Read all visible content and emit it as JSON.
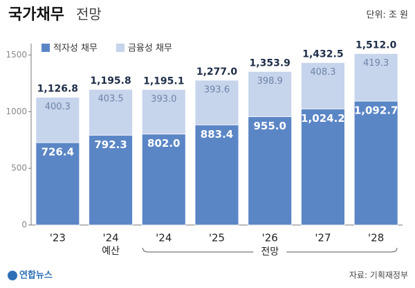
{
  "chart_data": {
    "type": "stacked-bar",
    "title": "국가채무",
    "subtitle": "전망",
    "unit": "단위: 조 원",
    "categories": [
      "'23",
      "'24",
      "'24",
      "'25",
      "'26",
      "'27",
      "'28"
    ],
    "annotations": {
      "budget": "예산",
      "forecast": "전망"
    },
    "series": [
      {
        "name": "적자성 채무",
        "color": "#5b86c6",
        "label_color": "#ffffff",
        "values": [
          726.4,
          792.3,
          802.0,
          883.4,
          955.0,
          1024.2,
          1092.7
        ],
        "value_labels": [
          "726.4",
          "792.3",
          "802.0",
          "883.4",
          "955.0",
          "1,024.2",
          "1,092.7"
        ]
      },
      {
        "name": "금융성 채무",
        "color": "#c6d4ec",
        "label_color": "#6f84a8",
        "values": [
          400.3,
          403.5,
          393.0,
          393.6,
          398.9,
          408.3,
          419.3
        ],
        "value_labels": [
          "400.3",
          "403.5",
          "393.0",
          "393.6",
          "398.9",
          "408.3",
          "419.3"
        ]
      }
    ],
    "totals": {
      "values": [
        1126.8,
        1195.8,
        1195.1,
        1277.0,
        1353.9,
        1432.5,
        1512.0
      ],
      "value_labels": [
        "1,126.8",
        "1,195.8",
        "1,195.1",
        "1,277.0",
        "1,353.9",
        "1,432.5",
        "1,512.0"
      ]
    },
    "ylim": [
      0,
      1600
    ],
    "yticks": [
      0,
      500,
      1000,
      1500
    ],
    "grid": false,
    "source": "자료: 기획재정부",
    "logo": "연합뉴스"
  }
}
